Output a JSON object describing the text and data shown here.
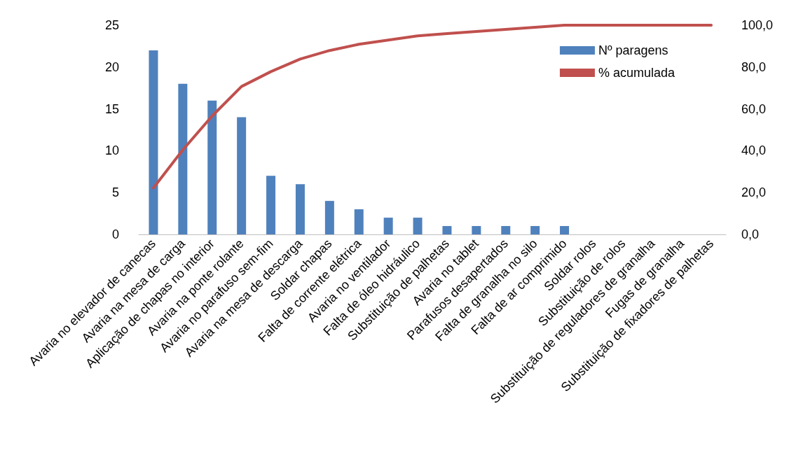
{
  "chart_data": {
    "type": "bar",
    "categories": [
      "Avaria no elevador de canecas",
      "Avaria na mesa de carga",
      "Aplicação de chapas no interior",
      "Avaria na ponte rolante",
      "Avaria no parafuso sem-fim",
      "Avaria na mesa de descarga",
      "Soldar chapas",
      "Falta de corrente elétrica",
      "Avaria no ventilador",
      "Falta de óleo hidráulico",
      "Substituição de palhetas",
      "Avaria no tablet",
      "Parafusos desapertados",
      "Falta de granalha no silo",
      "Falta de ar comprimido",
      "Soldar rolos",
      "Substituição de rolos",
      "Substituição de reguladores de granalha",
      "Fugas de granalha",
      "Substituição de fixadores de palhetas"
    ],
    "series": [
      {
        "name": "Nº paragens",
        "color": "#4f81bd",
        "values": [
          22,
          18,
          16,
          14,
          7,
          6,
          4,
          3,
          2,
          2,
          1,
          1,
          1,
          1,
          1,
          0,
          0,
          0,
          0,
          0
        ]
      },
      {
        "name": "% acumulada",
        "type": "line",
        "axis": "y2",
        "color": "#c0504d",
        "marker": "none",
        "values": [
          22.2,
          40.4,
          56.6,
          70.7,
          77.8,
          83.8,
          87.9,
          90.9,
          92.9,
          94.9,
          96.0,
          97.0,
          98.0,
          99.0,
          100,
          100,
          100,
          100,
          100,
          100
        ]
      }
    ],
    "ylim": [
      0,
      25
    ],
    "yticks": [
      0,
      5,
      10,
      15,
      20,
      25
    ],
    "y2lim": [
      0,
      100
    ],
    "y2ticks": [
      {
        "value": 0,
        "label": "0,0"
      },
      {
        "value": 20,
        "label": "20,0"
      },
      {
        "value": 40,
        "label": "40,0"
      },
      {
        "value": 60,
        "label": "60,0"
      },
      {
        "value": 80,
        "label": "80,0"
      },
      {
        "value": 100,
        "label": "100,0"
      }
    ],
    "grid": false,
    "legend": "top right"
  }
}
